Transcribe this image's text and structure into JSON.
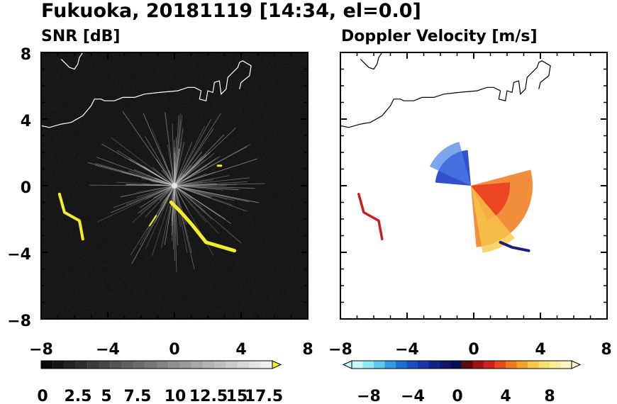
{
  "title": "Fukuoka, 20181119 [14:34, el=0.0]",
  "chart_data": [
    {
      "type": "heatmap",
      "title": "SNR [dB]",
      "xlim": [
        -8,
        8
      ],
      "ylim": [
        -8,
        8
      ],
      "xticks": [
        "−8",
        "−4",
        "0",
        "4",
        "8"
      ],
      "yticks": [
        "8",
        "4",
        "0",
        "−4",
        "−8"
      ],
      "colorbar": {
        "range": [
          0,
          20
        ],
        "ticks": [
          "0",
          "2.5",
          "5",
          "7.5",
          "10",
          "12.5",
          "15",
          "17.5"
        ],
        "extend": "max"
      },
      "background_color": "#141414",
      "echo_color": "#f2ee2a",
      "features": {
        "clutter_origin": [
          0,
          0
        ],
        "echo_band_main": [
          [
            -0.2,
            -1.0
          ],
          [
            0.4,
            -1.6
          ],
          [
            1.1,
            -2.4
          ],
          [
            1.9,
            -3.4
          ],
          [
            3.6,
            -3.9
          ]
        ],
        "echo_band_west": [
          [
            -6.9,
            -0.5
          ],
          [
            -6.6,
            -1.6
          ],
          [
            -5.7,
            -2.1
          ],
          [
            -5.5,
            -3.2
          ]
        ],
        "echo_fragment_ne": [
          [
            2.6,
            1.2
          ],
          [
            2.8,
            1.2
          ]
        ]
      }
    },
    {
      "type": "heatmap",
      "title": "Doppler Velocity [m/s]",
      "xlim": [
        -8,
        8
      ],
      "ylim": [
        -8,
        8
      ],
      "xticks": [
        "−8",
        "−4",
        "0",
        "4",
        "8"
      ],
      "yticks": [
        "8",
        "4",
        "0",
        "−4",
        "−8"
      ],
      "colorbar": {
        "range": [
          -10,
          10
        ],
        "ticks": [
          "−8",
          "−4",
          "0",
          "4",
          "8"
        ],
        "extend": "both"
      },
      "color_negative": "#1e3ec8",
      "color_positive": "#f07a1a",
      "features": {
        "approaching_sector_deg": [
          95,
          175
        ],
        "receding_sector_deg": [
          -85,
          15
        ],
        "max_range_km": 3.9
      }
    }
  ]
}
